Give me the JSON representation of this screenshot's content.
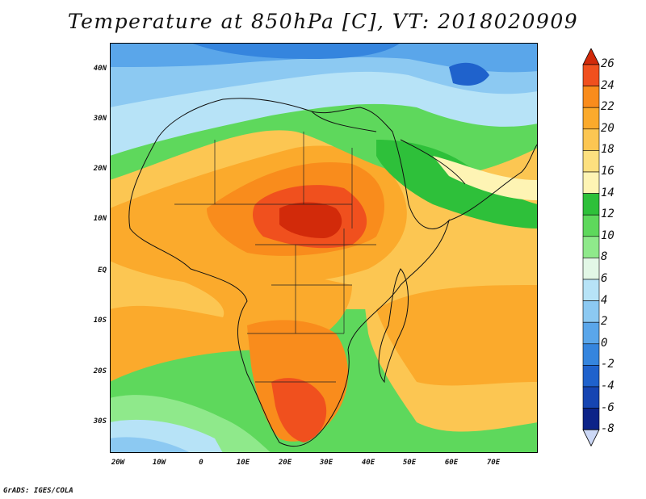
{
  "title": "Temperature at 850hPa [C], VT: 2018020909",
  "footer": "GrADS: IGES/COLA",
  "lat_labels": [
    "40N",
    "30N",
    "20N",
    "10N",
    "EQ",
    "10S",
    "20S",
    "30S"
  ],
  "lon_labels": [
    "20W",
    "10W",
    "0",
    "10E",
    "20E",
    "30E",
    "40E",
    "50E",
    "60E",
    "70E"
  ],
  "colorbar": {
    "labels": [
      "26",
      "24",
      "22",
      "20",
      "18",
      "16",
      "14",
      "12",
      "10",
      "8",
      "6",
      "4",
      "2",
      "0",
      "-2",
      "-4",
      "-6",
      "-8"
    ],
    "colors": [
      "#d22a0a",
      "#f0501e",
      "#f98c1c",
      "#fbaa2c",
      "#fcc652",
      "#fde07f",
      "#fef4b4",
      "#2ec03a",
      "#5ed85c",
      "#8fe98b",
      "#e2f7e6",
      "#b7e3f7",
      "#8cc9f2",
      "#5aa6ea",
      "#3585de",
      "#1f62cc",
      "#1645b2",
      "#0c2388"
    ]
  },
  "map": {
    "region": "Africa",
    "field": "temperature at 850hPa",
    "units": "C",
    "lat_range": [
      -36,
      45
    ],
    "lon_range": [
      -22,
      80
    ]
  }
}
